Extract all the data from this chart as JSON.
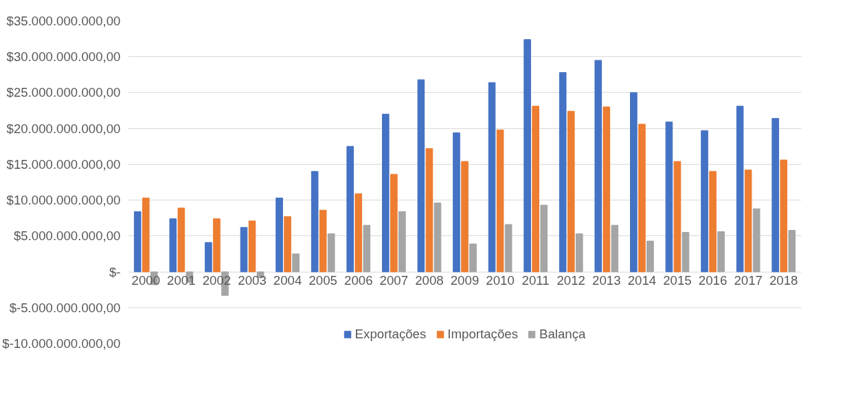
{
  "chart_data": {
    "type": "bar",
    "categories": [
      "2000",
      "2001",
      "2002",
      "2003",
      "2004",
      "2005",
      "2006",
      "2007",
      "2008",
      "2009",
      "2010",
      "2011",
      "2012",
      "2013",
      "2014",
      "2015",
      "2016",
      "2017",
      "2018"
    ],
    "series": [
      {
        "name": "Exportações",
        "color": "#4472c4",
        "values": [
          8400000000,
          7400000000,
          4100000000,
          6200000000,
          10300000000,
          14000000000,
          17500000000,
          22000000000,
          26800000000,
          19400000000,
          26400000000,
          32400000000,
          27800000000,
          29500000000,
          25000000000,
          20900000000,
          19700000000,
          23100000000,
          21400000000
        ]
      },
      {
        "name": "Importações",
        "color": "#ed7d31",
        "values": [
          10300000000,
          8900000000,
          7400000000,
          7100000000,
          7700000000,
          8600000000,
          10900000000,
          13600000000,
          17200000000,
          15400000000,
          19800000000,
          23100000000,
          22400000000,
          23000000000,
          20600000000,
          15400000000,
          14000000000,
          14200000000,
          15600000000
        ]
      },
      {
        "name": "Balança",
        "color": "#a5a5a5",
        "values": [
          -1800000000,
          -1500000000,
          -3300000000,
          -800000000,
          2500000000,
          5300000000,
          6500000000,
          8400000000,
          9600000000,
          3900000000,
          6600000000,
          9300000000,
          5300000000,
          6500000000,
          4300000000,
          5500000000,
          5600000000,
          8800000000,
          5800000000
        ]
      }
    ],
    "ylim": [
      -10000000000,
      35000000000
    ],
    "yticks": [
      {
        "value": -10000000000,
        "label": "$-10.000.000.000,00"
      },
      {
        "value": -5000000000,
        "label": "$-5.000.000.000,00"
      },
      {
        "value": 0,
        "label": "$-"
      },
      {
        "value": 5000000000,
        "label": "$5.000.000.000,00"
      },
      {
        "value": 10000000000,
        "label": "$10.000.000.000,00"
      },
      {
        "value": 15000000000,
        "label": "$15.000.000.000,00"
      },
      {
        "value": 20000000000,
        "label": "$20.000.000.000,00"
      },
      {
        "value": 25000000000,
        "label": "$25.000.000.000,00"
      },
      {
        "value": 30000000000,
        "label": "$30.000.000.000,00"
      },
      {
        "value": 35000000000,
        "label": "$35.000.000.000,00"
      }
    ],
    "grid": "y",
    "legend": "bottom"
  }
}
